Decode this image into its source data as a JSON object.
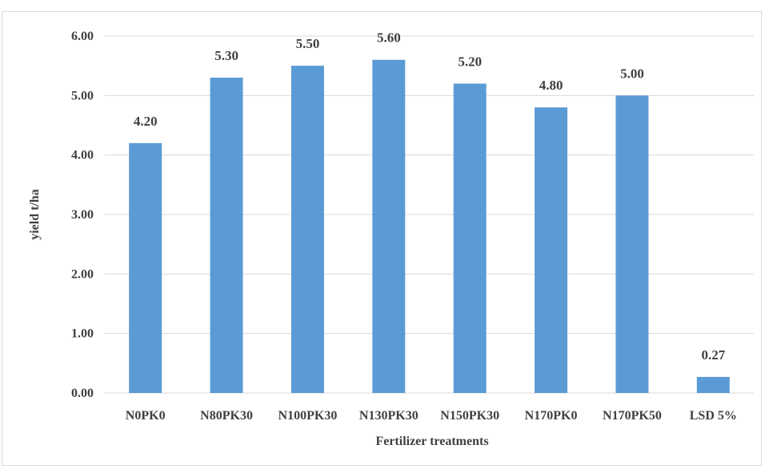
{
  "chart_data": {
    "type": "bar",
    "categories": [
      "N0PK0",
      "N80PK30",
      "N100PK30",
      "N130PK30",
      "N150PK30",
      "N170PK0",
      "N170PK50",
      "LSD 5%"
    ],
    "values": [
      4.2,
      5.3,
      5.5,
      5.6,
      5.2,
      4.8,
      5.0,
      0.27
    ],
    "data_labels": [
      "4.20",
      "5.30",
      "5.50",
      "5.60",
      "5.20",
      "4.80",
      "5.00",
      "0.27"
    ],
    "y_ticks": [
      "0.00",
      "1.00",
      "2.00",
      "3.00",
      "4.00",
      "5.00",
      "6.00"
    ],
    "title": "",
    "xlabel": "Fertilizer treatments",
    "ylabel": "yield t/ha",
    "ylim": [
      0,
      6
    ],
    "grid": true,
    "legend": "none",
    "bar_color": "#5b9bd5",
    "grid_color": "#d9d9d9",
    "text_color": "#404040"
  }
}
